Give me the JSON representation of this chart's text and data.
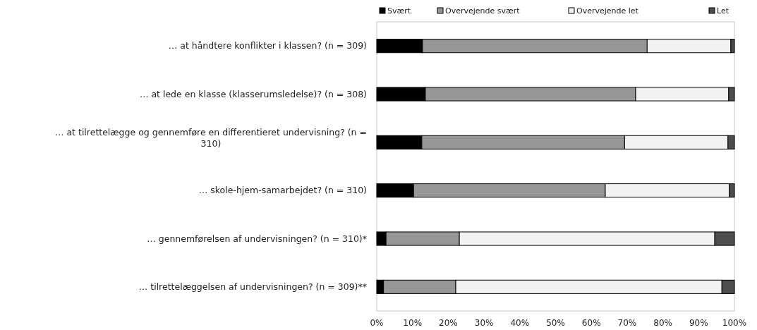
{
  "chart_data": {
    "type": "bar",
    "orientation": "horizontal",
    "stacked": true,
    "legend": "top",
    "grid": false,
    "categories": [
      "… at håndtere konflikter i klassen?  (n = 309)",
      "… at lede en klasse (klasserumsledelse)? (n = 308)",
      "… at tilrettelægge og gennemføre en differentieret undervisning? (n = 310)",
      "… skole-hjem-samarbejdet? (n = 310)",
      "… gennemførelsen af undervisningen?  (n = 310)*",
      "… tilrettelæggelsen af undervisningen? (n = 309)**"
    ],
    "series": [
      {
        "name": "Svært",
        "color": "#000000",
        "values": [
          12.8,
          13.6,
          12.6,
          10.3,
          2.6,
          1.9
        ]
      },
      {
        "name": "Overvejende svært",
        "color": "#969696",
        "values": [
          62.8,
          58.8,
          56.7,
          53.6,
          20.5,
          20.2
        ]
      },
      {
        "name": "Overvejende let",
        "color": "#f2f2f2",
        "values": [
          23.4,
          26.0,
          28.9,
          34.7,
          71.4,
          74.4
        ]
      },
      {
        "name": "Let",
        "color": "#4d4d4d",
        "values": [
          1.0,
          1.6,
          1.8,
          1.4,
          5.5,
          3.5
        ]
      }
    ],
    "xlim": [
      0,
      100
    ],
    "xticks": [
      {
        "value": 0,
        "label": "0%"
      },
      {
        "value": 10,
        "label": "10%"
      },
      {
        "value": 20,
        "label": "20%"
      },
      {
        "value": 30,
        "label": "30%"
      },
      {
        "value": 40,
        "label": "40%"
      },
      {
        "value": 50,
        "label": "50%"
      },
      {
        "value": 60,
        "label": "60%"
      },
      {
        "value": 70,
        "label": "70%"
      },
      {
        "value": 80,
        "label": "80%"
      },
      {
        "value": 90,
        "label": "90%"
      },
      {
        "value": 100,
        "label": "100%"
      }
    ]
  }
}
